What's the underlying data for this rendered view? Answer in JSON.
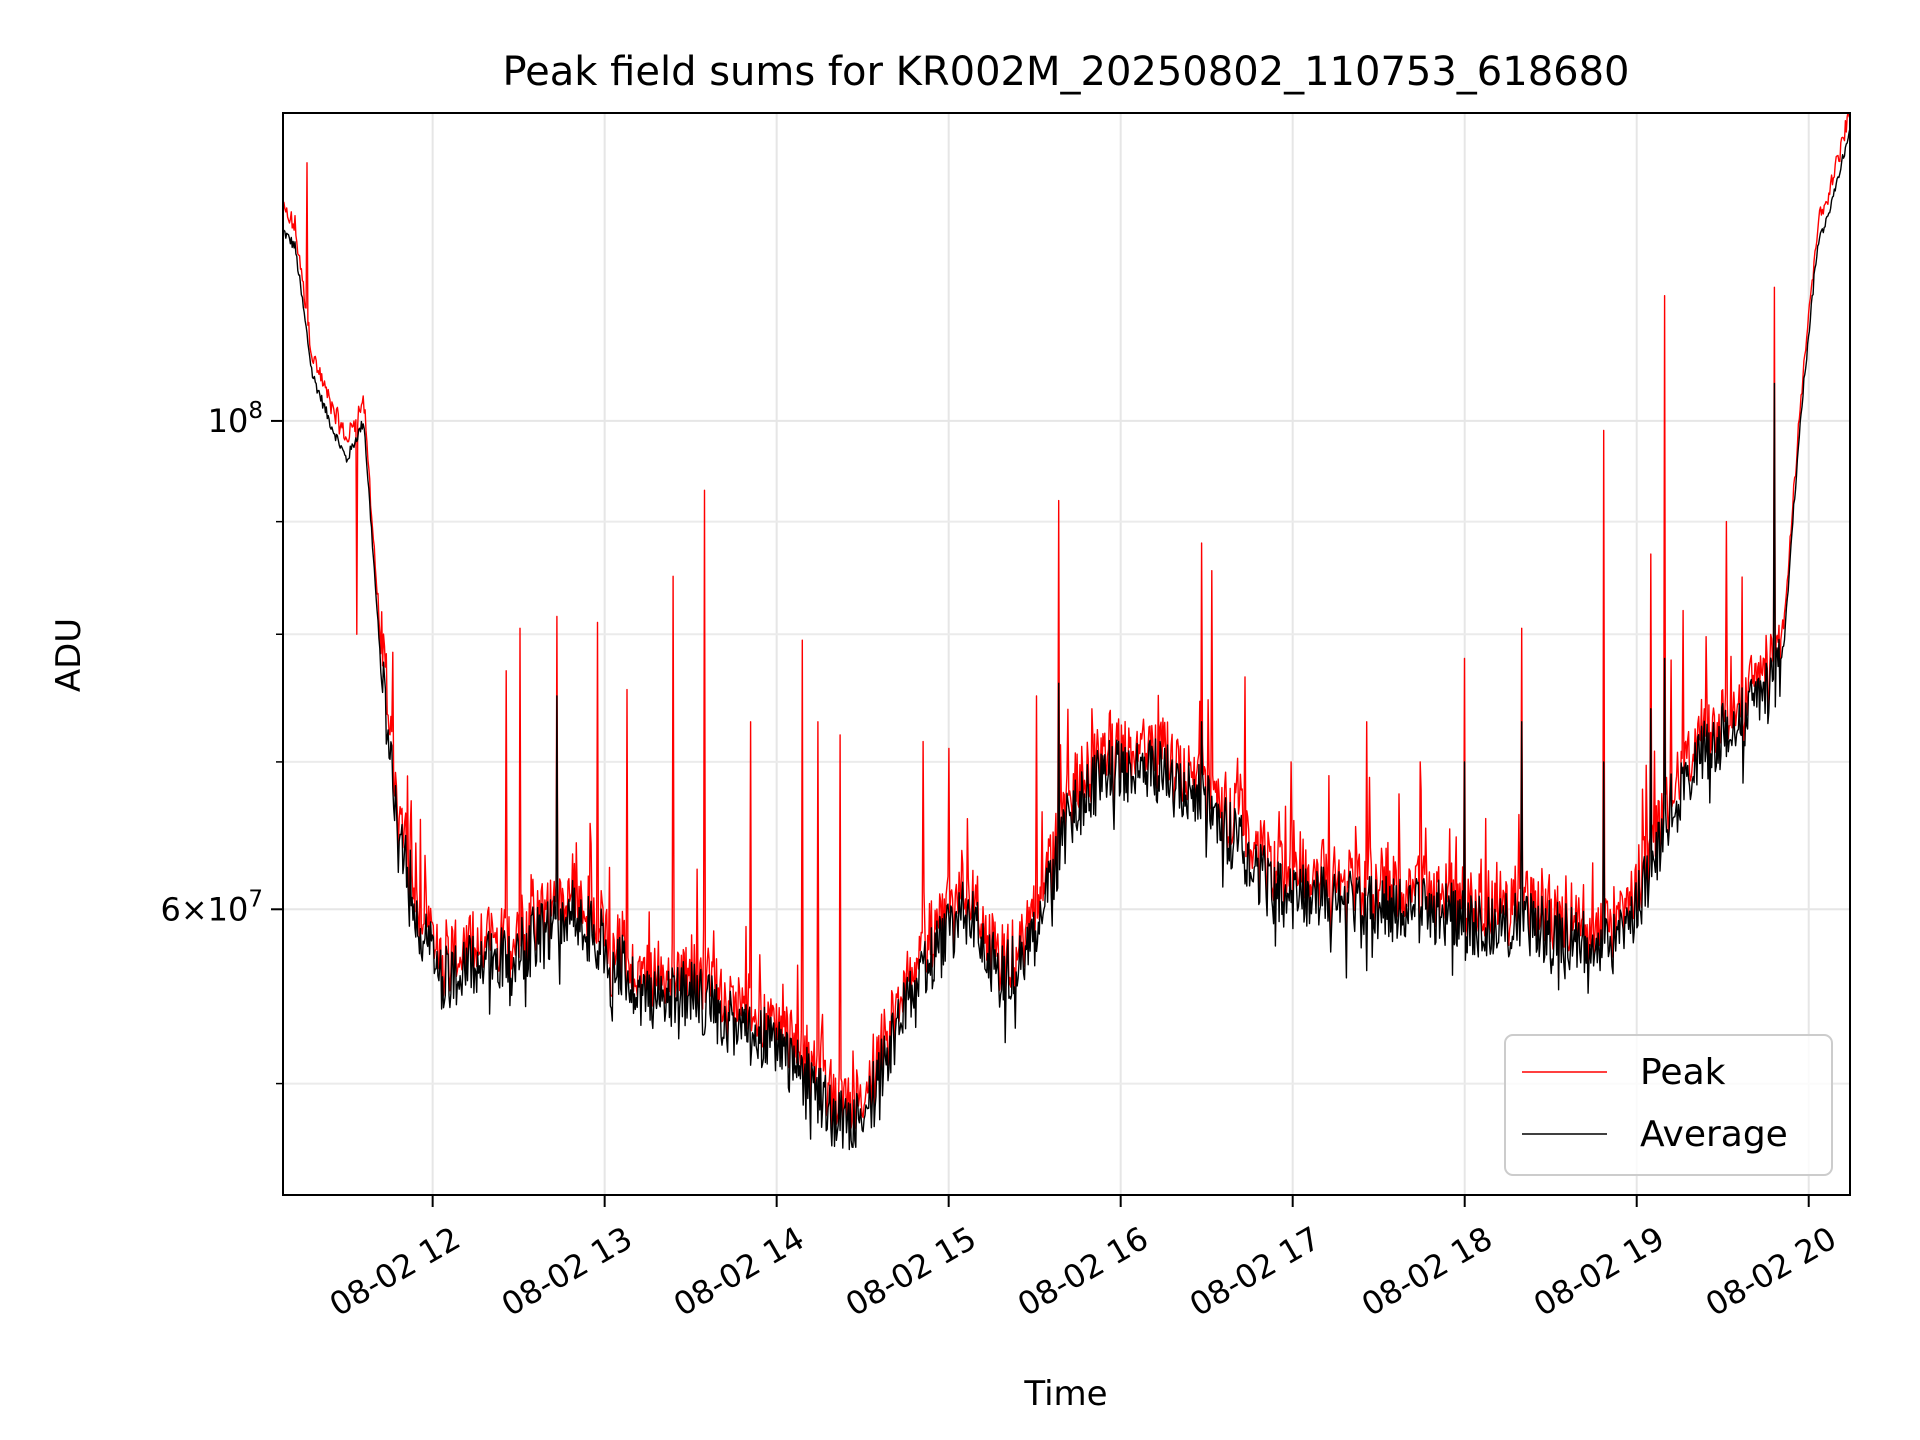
{
  "chart_data": {
    "type": "line",
    "title": "Peak field sums for KR002M_20250802_110753_618680",
    "xlabel": "Time",
    "ylabel": "ADU",
    "x_ticks": [
      "08-02 12",
      "08-02 13",
      "08-02 14",
      "08-02 15",
      "08-02 16",
      "08-02 17",
      "08-02 18",
      "08-02 19",
      "08-02 20"
    ],
    "x_tick_hours": [
      12,
      13,
      14,
      15,
      16,
      17,
      18,
      19,
      20
    ],
    "xlim_hours": [
      11.13,
      20.24
    ],
    "y_scale": "log",
    "ylim": [
      44500000,
      138000000
    ],
    "y_major_ticks": [
      {
        "value": 100000000,
        "base": "10",
        "exp": "8",
        "mant": ""
      },
      {
        "value": 60000000,
        "base": "10",
        "exp": "7",
        "mant": "6"
      }
    ],
    "y_minor_ticks": [
      50000000,
      70000000,
      80000000,
      90000000
    ],
    "grid": true,
    "legend_position": "lower-right",
    "series": [
      {
        "name": "Peak",
        "color": "#ff0000"
      },
      {
        "name": "Average",
        "color": "#000000"
      }
    ],
    "baseline_hours": [
      11.13,
      11.2,
      11.3,
      11.4,
      11.5,
      11.6,
      11.65,
      11.7,
      11.8,
      11.9,
      12.0,
      12.1,
      12.3,
      12.5,
      12.7,
      12.8,
      13.0,
      13.2,
      13.5,
      13.8,
      14.0,
      14.2,
      14.35,
      14.5,
      14.7,
      14.9,
      15.1,
      15.3,
      15.5,
      15.7,
      15.9,
      16.1,
      16.3,
      16.5,
      16.7,
      16.9,
      17.2,
      17.5,
      17.8,
      18.1,
      18.4,
      18.7,
      18.85,
      19.0,
      19.2,
      19.4,
      19.6,
      19.75,
      19.85,
      19.95,
      20.05,
      20.15,
      20.24
    ],
    "baseline_values": [
      122000000,
      120000000,
      105000000,
      100000000,
      96000000,
      100000000,
      88000000,
      77000000,
      66000000,
      60000000,
      57000000,
      56000000,
      57000000,
      57500000,
      59000000,
      60000000,
      58000000,
      55000000,
      55000000,
      53000000,
      52000000,
      50000000,
      48000000,
      48000000,
      53000000,
      57000000,
      60000000,
      56000000,
      58000000,
      66000000,
      69000000,
      70000000,
      69000000,
      67000000,
      64000000,
      61000000,
      61000000,
      60000000,
      60000000,
      59000000,
      59000000,
      58000000,
      57500000,
      60000000,
      67000000,
      71000000,
      73000000,
      75000000,
      78000000,
      100000000,
      120000000,
      127000000,
      136000000
    ],
    "spikes_peak": [
      [
        11.27,
        131000000
      ],
      [
        11.56,
        80000000
      ],
      [
        11.72,
        79000000
      ],
      [
        11.77,
        78500000
      ],
      [
        12.43,
        77000000
      ],
      [
        12.51,
        80500000
      ],
      [
        12.72,
        81500000
      ],
      [
        12.96,
        81000000
      ],
      [
        13.13,
        75500000
      ],
      [
        13.4,
        85000000
      ],
      [
        13.58,
        93000000
      ],
      [
        13.85,
        73000000
      ],
      [
        14.15,
        79500000
      ],
      [
        14.24,
        73000000
      ],
      [
        14.37,
        72000000
      ],
      [
        14.85,
        71500000
      ],
      [
        15.0,
        71000000
      ],
      [
        15.51,
        75000000
      ],
      [
        15.64,
        92000000
      ],
      [
        15.83,
        74000000
      ],
      [
        16.47,
        88000000
      ],
      [
        16.53,
        85500000
      ],
      [
        16.72,
        76500000
      ],
      [
        16.99,
        70000000
      ],
      [
        17.21,
        69000000
      ],
      [
        17.43,
        73000000
      ],
      [
        17.74,
        70000000
      ],
      [
        18.0,
        78000000
      ],
      [
        18.33,
        80500000
      ],
      [
        18.81,
        99000000
      ],
      [
        19.08,
        87000000
      ],
      [
        19.16,
        114000000
      ],
      [
        19.27,
        82000000
      ],
      [
        19.52,
        90000000
      ],
      [
        19.8,
        115000000
      ]
    ],
    "spikes_avg": [
      [
        11.72,
        76500000
      ],
      [
        12.72,
        75000000
      ],
      [
        15.64,
        76000000
      ],
      [
        16.47,
        73000000
      ],
      [
        18.0,
        70000000
      ],
      [
        18.33,
        73000000
      ],
      [
        18.81,
        70000000
      ],
      [
        19.08,
        74000000
      ],
      [
        19.16,
        78000000
      ],
      [
        19.8,
        104000000
      ]
    ]
  }
}
